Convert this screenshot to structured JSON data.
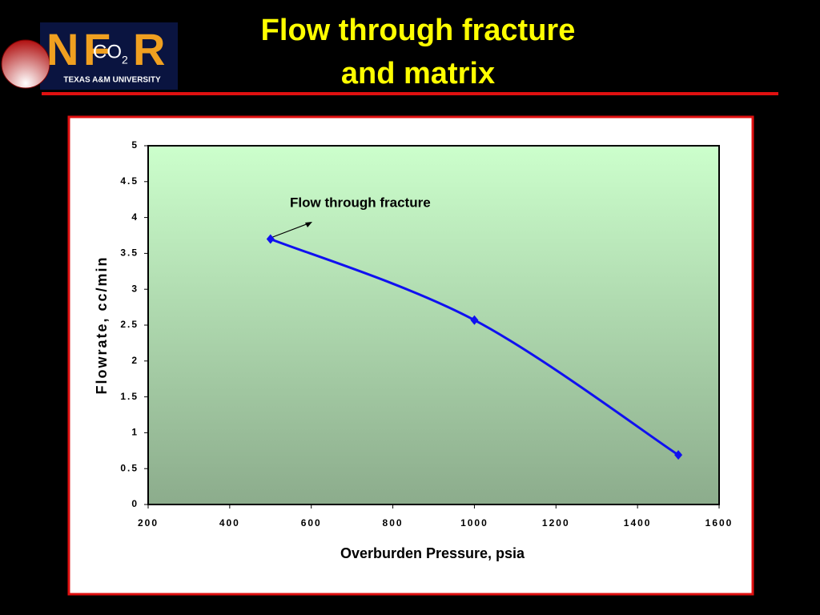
{
  "slide": {
    "title": [
      "Flow through fracture",
      "and matrix"
    ]
  },
  "logo": {
    "letters": [
      "N",
      "F",
      "R"
    ],
    "gas": "CO",
    "gas_subscript": "2",
    "university": "TEXAS A&M UNIVERSITY"
  },
  "chart_data": {
    "type": "line",
    "x_label": "Overburden Pressure, psia",
    "y_label": "Flowrate, cc/min",
    "annotation": "Flow through fracture",
    "series": [
      {
        "name": "Flow through fracture",
        "color": "#1010f0",
        "x": [
          500,
          1000,
          1500
        ],
        "values": [
          3.7,
          2.57,
          0.69
        ]
      }
    ],
    "xlim": [
      200,
      1600
    ],
    "xticks": [
      200,
      400,
      600,
      800,
      1000,
      1200,
      1400,
      1600
    ],
    "ylim": [
      0,
      5
    ],
    "yticks": [
      0,
      0.5,
      1,
      1.5,
      2,
      2.5,
      3,
      3.5,
      4,
      4.5,
      5
    ],
    "grid": false
  }
}
